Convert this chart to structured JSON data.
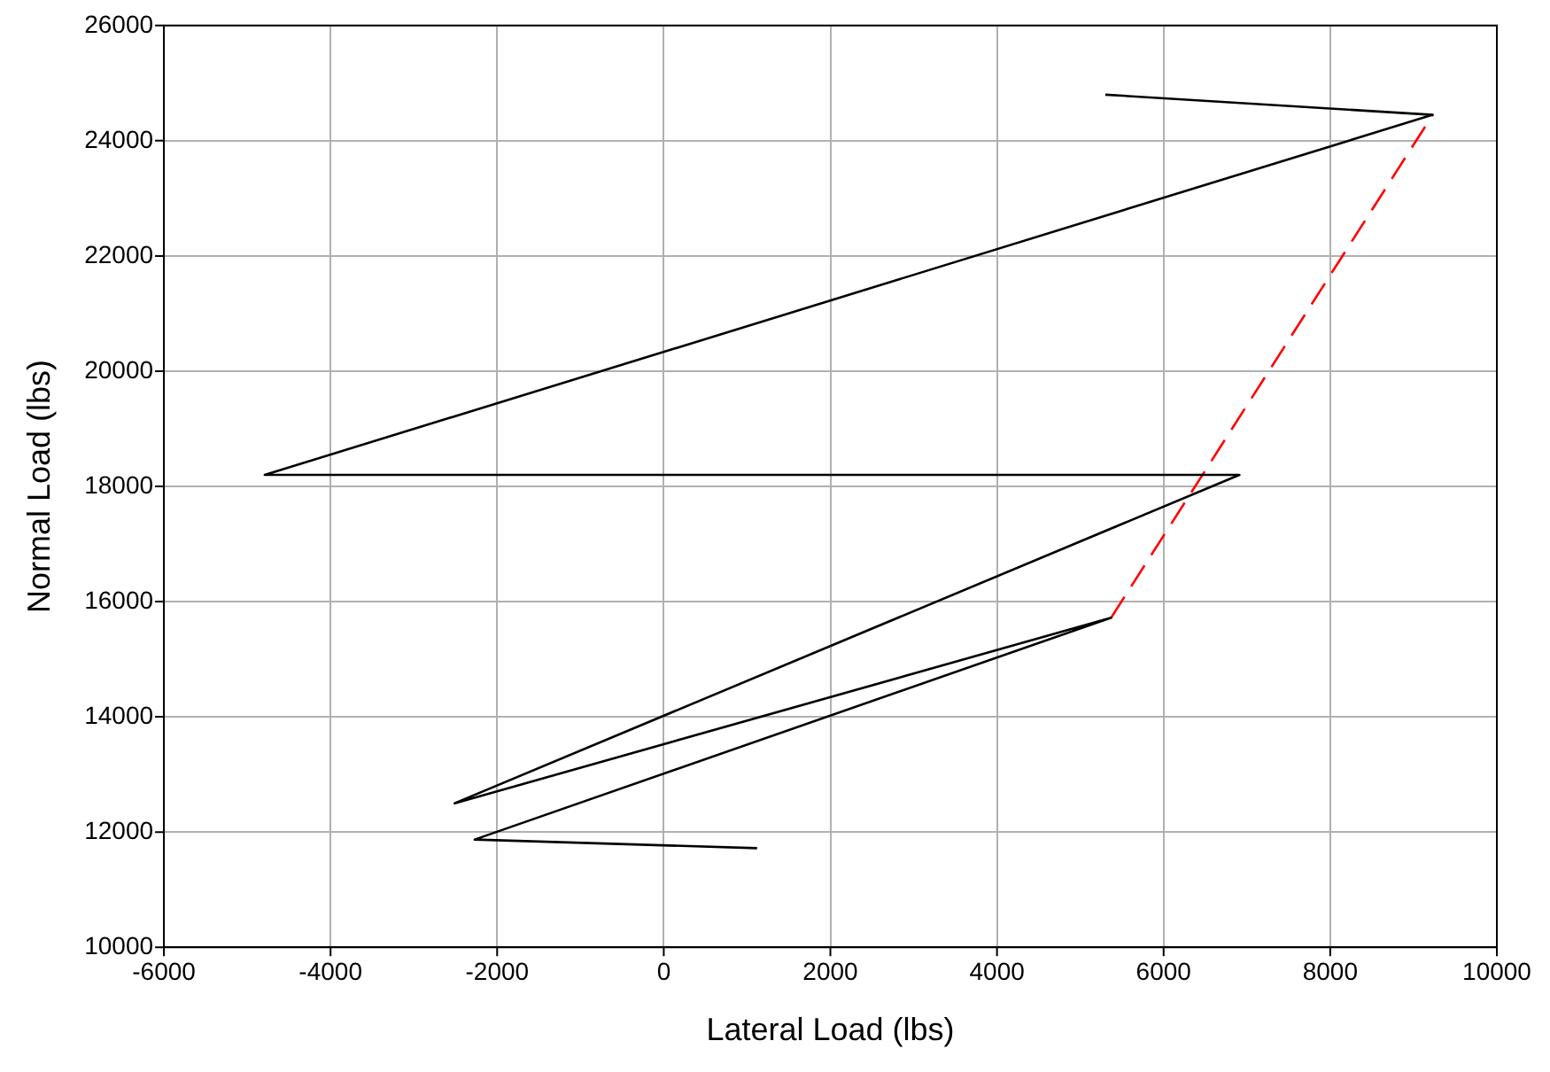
{
  "chart_data": {
    "type": "line",
    "xlabel": "Lateral Load (lbs)",
    "ylabel": "Normal Load (lbs)",
    "series": [
      {
        "color": "#000000",
        "line_style": "solid",
        "x": [
          1120,
          -2270,
          5370,
          -2510,
          6910,
          -4790,
          9230,
          5300
        ],
        "values": [
          11720,
          11870,
          15720,
          12500,
          18200,
          18200,
          24450,
          24800
        ]
      },
      {
        "color": "#ff0000",
        "line_style": "dashed",
        "x": [
          5370,
          9230
        ],
        "values": [
          15720,
          24450
        ]
      }
    ],
    "xlim": [
      -6000,
      10000
    ],
    "xticks": [
      -6000,
      -4000,
      -2000,
      0,
      2000,
      4000,
      6000,
      8000,
      10000
    ],
    "ylim": [
      10000,
      26000
    ],
    "yticks": [
      10000,
      12000,
      14000,
      16000,
      18000,
      20000,
      22000,
      24000,
      26000
    ],
    "grid": true,
    "legend": false,
    "marker": "none"
  }
}
